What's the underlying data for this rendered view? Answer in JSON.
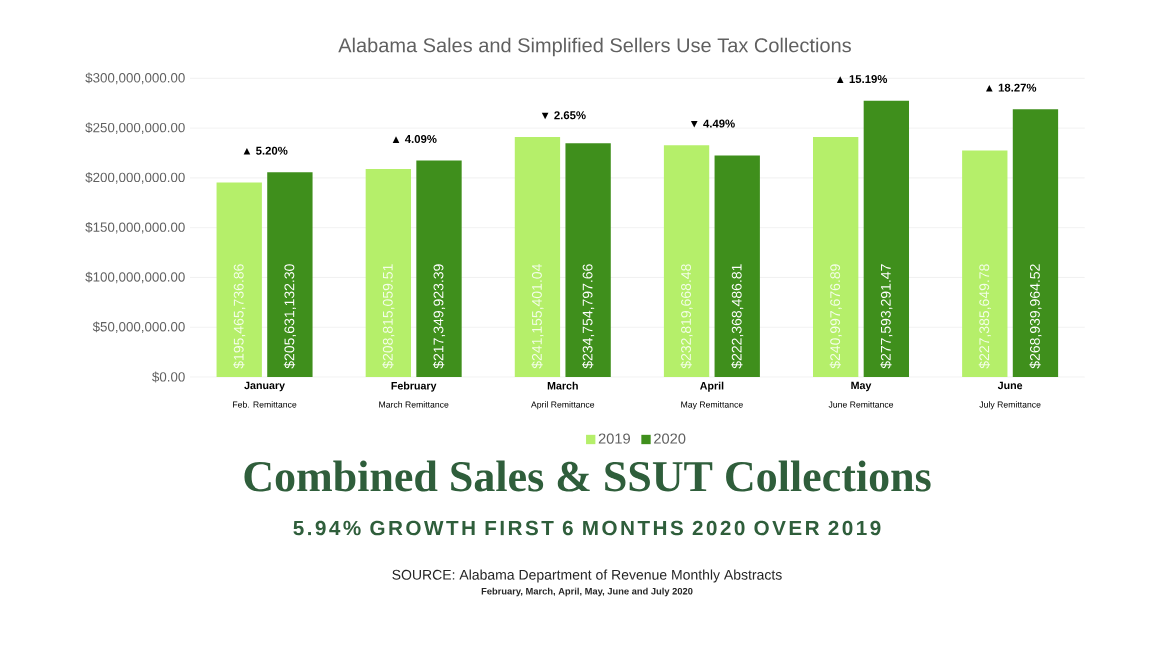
{
  "chart_data": {
    "type": "bar",
    "title": "Alabama Sales and Simplified Sellers Use Tax Collections",
    "categories": [
      "January",
      "February",
      "March",
      "April",
      "May",
      "June"
    ],
    "series": [
      {
        "name": "2019",
        "color": "#b5ef6a",
        "values": [
          195465736.86,
          208815059.51,
          241155401.04,
          232819668.48,
          240997676.89,
          227385649.78
        ],
        "value_labels": [
          "$195,465,736.86",
          "$208,815,059.51",
          "$241,155,401.04",
          "$232,819,668.48",
          "$240,997,676.89",
          "$227,385,649.78"
        ]
      },
      {
        "name": "2020",
        "color": "#3f8f1c",
        "values": [
          205631132.3,
          217349923.39,
          234754797.66,
          222368486.81,
          277593291.47,
          268939964.52
        ],
        "value_labels": [
          "$205,631,132.30",
          "$217,349,923.39",
          "$234,754,797.66",
          "$222,368,486.81",
          "$277,593,291.47",
          "$268,939,964.52"
        ]
      }
    ],
    "ylim": [
      0,
      300000000
    ],
    "yticks": [
      {
        "value": 0,
        "label": "$0.00"
      },
      {
        "value": 50000000,
        "label": "$50,000,000.00"
      },
      {
        "value": 100000000,
        "label": "$100,000,000.00"
      },
      {
        "value": 150000000,
        "label": "$150,000,000.00"
      },
      {
        "value": 200000000,
        "label": "$200,000,000.00"
      },
      {
        "value": 250000000,
        "label": "$250,000,000.00"
      },
      {
        "value": 300000000,
        "label": "$300,000,000.00"
      }
    ],
    "grid": "y",
    "legend": "bottom",
    "annotations": [
      "Feb. Remittance",
      "March Remittance",
      "April Remittance",
      "May Remittance",
      "June Remittance",
      "July Remittance",
      "▲ 5.20%",
      "▲ 4.09%",
      "▼ 2.65%",
      "▼ 4.49%",
      "▲ 15.19%",
      "▲ 18.27%",
      "Combined Sales & SSUT Collections",
      "5.94% GROWTH FIRST 6 MONTHS 2020 OVER 2019",
      "SOURCE: Alabama Department of Revenue Monthly Abstracts",
      "February, March, April, May, June and July 2020"
    ]
  }
}
